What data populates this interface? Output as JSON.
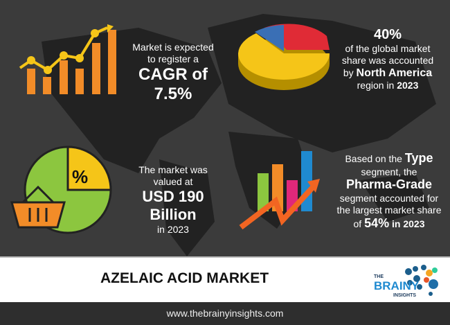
{
  "stats": {
    "cagr": {
      "line1": "Market is expected",
      "line2": "to register a",
      "highlight": "CAGR of 7.5%"
    },
    "region": {
      "highlight": "40%",
      "line1": "of the global market",
      "line2": "share was accounted",
      "line3_prefix": "by ",
      "line3_bold": "North America",
      "line4_prefix": "region in ",
      "line4_bold": "2023"
    },
    "size": {
      "line1": "The market was",
      "line2": "valued at",
      "highlight": "USD 190 Billion",
      "line3": "in 2023"
    },
    "segment": {
      "line1_prefix": "Based on the ",
      "line1_bold": "Type",
      "line2": "segment, the",
      "highlight": "Pharma-Grade",
      "line3": "segment accounted for",
      "line4": "the largest market share",
      "line5_prefix": "of ",
      "line5_bold": "54%",
      "line5_suffix": " in 2023"
    }
  },
  "icon_percent": "%",
  "title": "AZELAIC ACID MARKET",
  "logo": {
    "the": "THE",
    "brainy": "BRAINY",
    "insights": "INSIGHTS"
  },
  "footer_url": "www.thebrainyinsights.com",
  "colors": {
    "orange": "#f28c28",
    "yellow": "#f5c518",
    "green": "#8cc63f",
    "red": "#e02b36",
    "blue": "#3a6fb5",
    "brand_blue": "#1f8ad0"
  }
}
